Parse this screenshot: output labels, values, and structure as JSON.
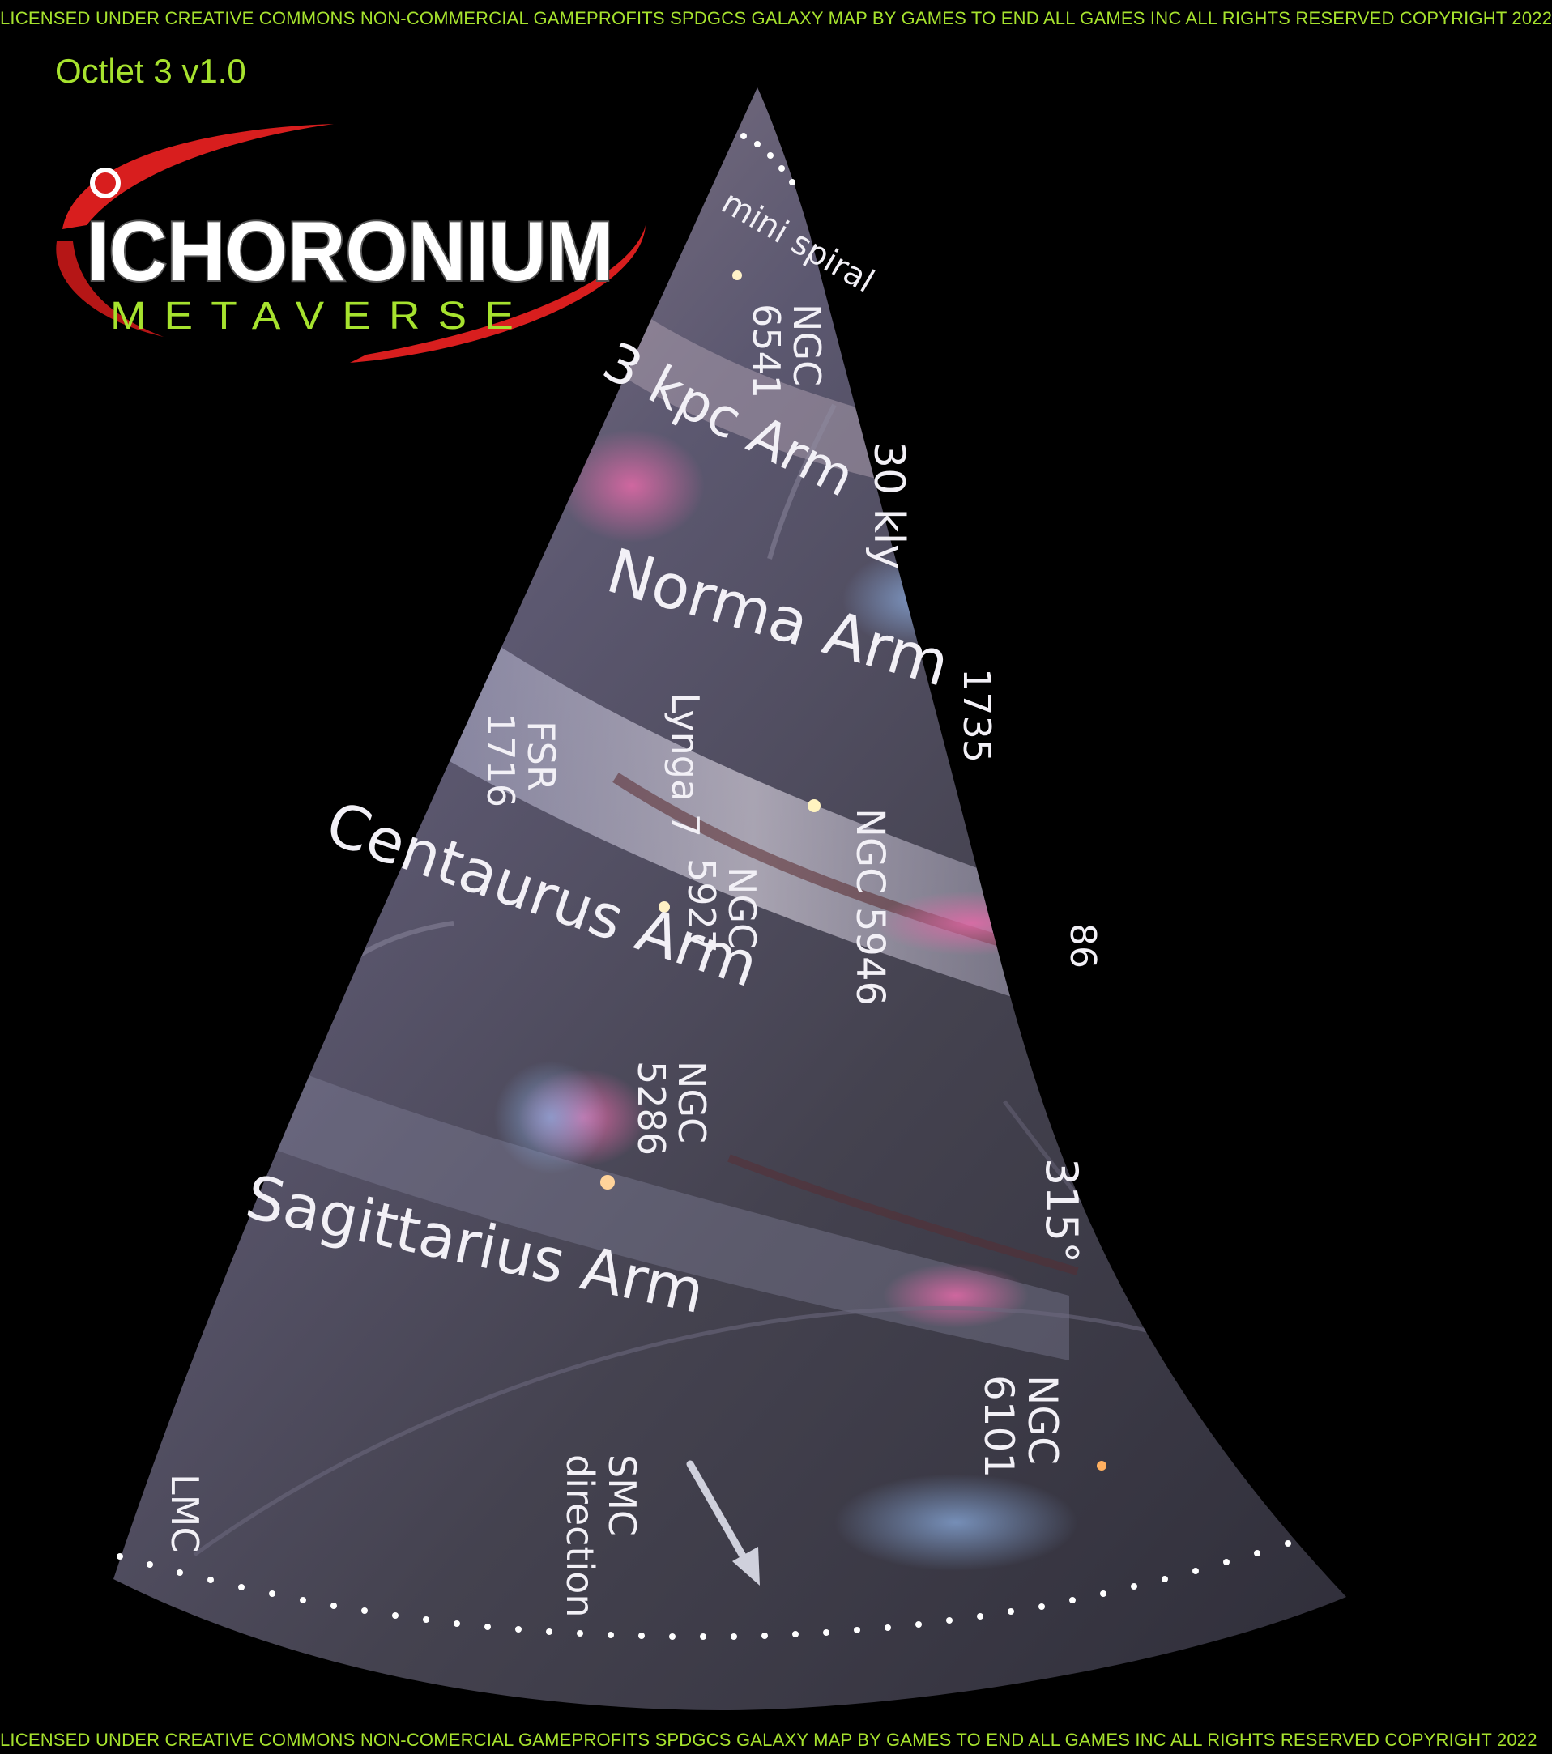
{
  "license": {
    "top": "LICENSED UNDER CREATIVE COMMONS NON-COMMERCIAL GAMEPROFITS SPDGCS GALAXY MAP BY GAMES TO END ALL GAMES INC ALL RIGHTS RESERVED  COPYRIGHT 2022",
    "bottom": "LICENSED UNDER CREATIVE COMMONS NON-COMERCIAL GAMEPROFITS SPDGCS GALAXY MAP BY GAMES TO END ALL GAMES  INC ALL RIGHTS RESERVED  COPYRIGHT 2022"
  },
  "version": "Octlet 3 v1.0",
  "logo": {
    "title": "ICHORONIUM",
    "subtitle": "METAVERSE"
  },
  "colors": {
    "accent_green": "#a6e22e",
    "logo_red": "#d81e1e",
    "label_white": "#f2f0f6"
  },
  "map": {
    "arms": {
      "three_kpc": "3 kpc Arm",
      "norma": "Norma Arm",
      "centaurus": "Centaurus Arm",
      "sagittarius": "Sagittarius Arm",
      "mini_spiral": "mini spiral"
    },
    "distance": "30 kly",
    "angle": "315°",
    "clusters": {
      "ngc6541": [
        "NGC",
        "6541"
      ],
      "ngc1735": "1735",
      "fsr1716": [
        "FSR",
        "1716"
      ],
      "lynga7": "Lynga 7",
      "ngc5927": [
        "NGC",
        "5927"
      ],
      "ngc5946": "NGC 5946",
      "ngc5286": [
        "NGC",
        "5286"
      ],
      "ngc6101": [
        "NGC",
        "6101"
      ],
      "edge_86": "86"
    },
    "directions": {
      "smc": [
        "SMC",
        "direction"
      ],
      "lmc": "LMC"
    }
  }
}
